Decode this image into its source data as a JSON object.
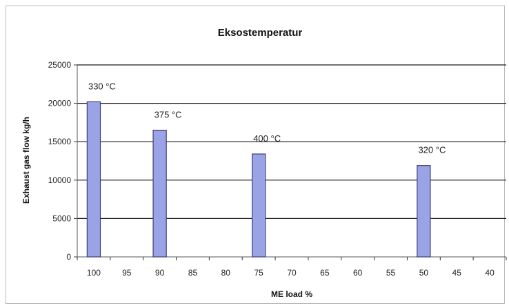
{
  "chart_data": {
    "type": "bar",
    "title": "Eksostemperatur",
    "xlabel": "ME load %",
    "ylabel": "Exhaust gas flow kg/h",
    "categories": [
      "100",
      "95",
      "90",
      "85",
      "80",
      "75",
      "70",
      "65",
      "60",
      "55",
      "50",
      "45",
      "40"
    ],
    "values": [
      20200,
      0,
      16500,
      0,
      0,
      13400,
      0,
      0,
      0,
      0,
      11900,
      0,
      0
    ],
    "data_labels": [
      "330 °C",
      "",
      "375 °C",
      "",
      "",
      "400 °C",
      "",
      "",
      "",
      "",
      "320 °C",
      "",
      ""
    ],
    "ylim": [
      0,
      25000
    ],
    "yticks": [
      0,
      5000,
      10000,
      15000,
      20000,
      25000
    ],
    "grid": true,
    "colors": {
      "bar_fill": "#9aa3e6",
      "bar_stroke": "#3a3f7a",
      "grid": "#1a1a1a"
    }
  }
}
